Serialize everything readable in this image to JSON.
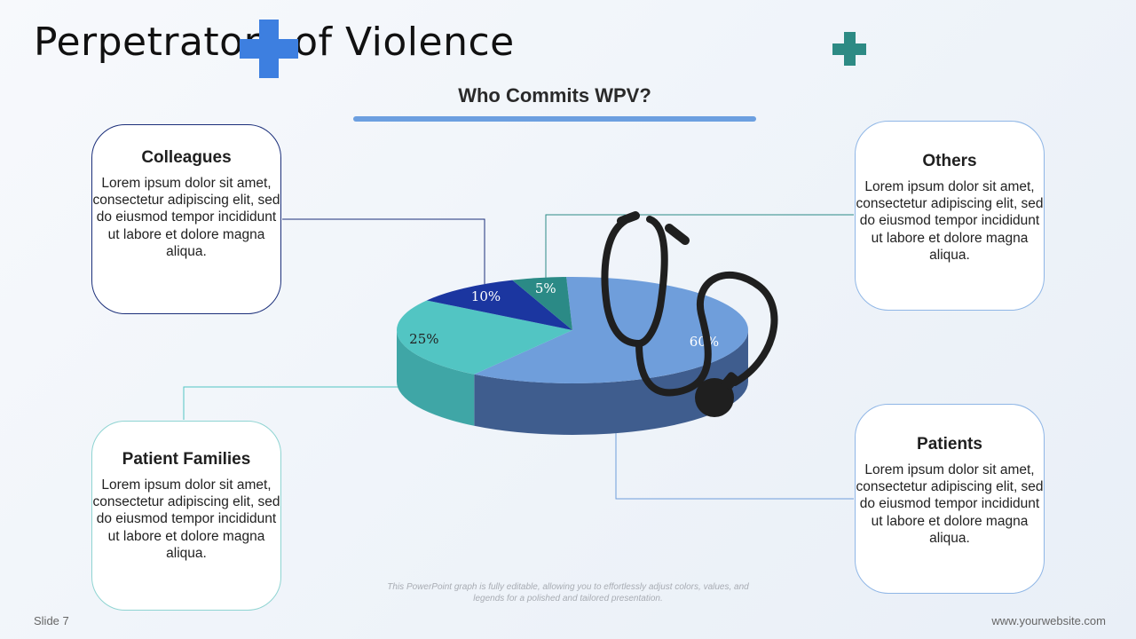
{
  "slide": {
    "title": "Perpetrators of Violence",
    "subtitle": "Who Commits WPV?",
    "slide_number": "Slide 7",
    "website": "www.yourwebsite.com",
    "footnote_line1": "This PowerPoint graph is fully editable, allowing you to effortlessly adjust colors, values, and",
    "footnote_line2": "legends for a polished and tailored presentation."
  },
  "icons": {
    "title_cross": "plus-cross-icon",
    "corner_cross": "plus-cross-icon",
    "stethoscope": "stethoscope-icon"
  },
  "colors": {
    "title_cross": "#3d7fe0",
    "corner_cross": "#2d8a84",
    "subtitle_bar": "#6c9fe0"
  },
  "cards": {
    "colleagues": {
      "title": "Colleagues",
      "body": "Lorem ipsum dolor sit amet, consectetur adipiscing elit, sed do eiusmod tempor incididunt ut labore et dolore magna aliqua.",
      "border": "#1b2f7a"
    },
    "others": {
      "title": "Others",
      "body": "Lorem ipsum dolor sit amet, consectetur adipiscing elit, sed do eiusmod tempor incididunt ut labore et dolore magna aliqua.",
      "border": "#8fb6e6"
    },
    "patient_families": {
      "title": "Patient Families",
      "body": "Lorem ipsum dolor sit amet, consectetur adipiscing elit, sed do eiusmod tempor incididunt ut labore et dolore magna aliqua.",
      "border": "#8fd4d2"
    },
    "patients": {
      "title": "Patients",
      "body": "Lorem ipsum dolor sit amet, consectetur adipiscing elit, sed do eiusmod tempor incididunt ut labore et dolore magna aliqua.",
      "border": "#8fb6e6"
    }
  },
  "chart_data": {
    "type": "pie",
    "style": "3d",
    "slices": [
      {
        "label": "60%",
        "value": 60,
        "color": "#6f9edb",
        "side_color": "#3f5d8e"
      },
      {
        "label": "25%",
        "value": 25,
        "color": "#52c5c3",
        "side_color": "#3fa6a6"
      },
      {
        "label": "10%",
        "value": 10,
        "color": "#1b36a0",
        "side_color": "#13287a"
      },
      {
        "label": "5%",
        "value": 5,
        "color": "#2b8a86",
        "side_color": "#226e6b"
      }
    ]
  }
}
